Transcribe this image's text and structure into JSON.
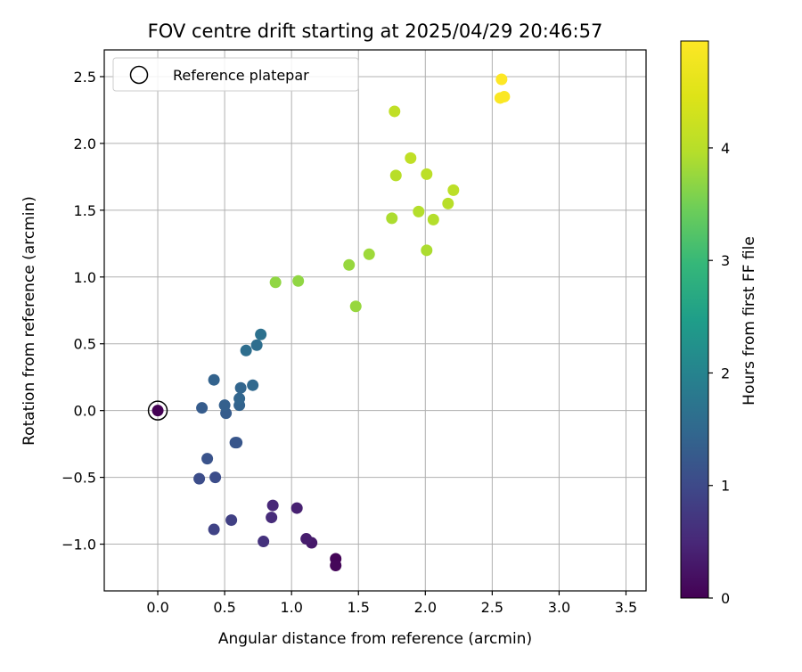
{
  "chart_data": {
    "type": "scatter",
    "title": "FOV centre drift starting at 2025/04/29 20:46:57",
    "xlabel": "Angular distance from reference (arcmin)",
    "ylabel": "Rotation from reference (arcmin)",
    "xlim": [
      -0.4,
      3.65
    ],
    "ylim": [
      -1.35,
      2.7
    ],
    "xticks": [
      0.0,
      0.5,
      1.0,
      1.5,
      2.0,
      2.5,
      3.0,
      3.5
    ],
    "xtick_labels": [
      "0.0",
      "0.5",
      "1.0",
      "1.5",
      "2.0",
      "2.5",
      "3.0",
      "3.5"
    ],
    "yticks": [
      -1.0,
      -0.5,
      0.0,
      0.5,
      1.0,
      1.5,
      2.0,
      2.5
    ],
    "ytick_labels": [
      "−1.0",
      "−0.5",
      "0.0",
      "0.5",
      "1.0",
      "1.5",
      "2.0",
      "2.5"
    ],
    "grid": true,
    "legend": {
      "placement": "upper-left",
      "entries": [
        "Reference platepar"
      ]
    },
    "colorbar": {
      "label": "Hours from first FF file",
      "colormap": "viridis",
      "range": [
        0,
        4.95
      ],
      "ticks": [
        0,
        1,
        2,
        3,
        4
      ],
      "tick_labels": [
        "0",
        "1",
        "2",
        "3",
        "4"
      ]
    },
    "reference_point": {
      "x": 0.0,
      "y": 0.0,
      "label": "Reference platepar"
    },
    "points": [
      {
        "x": 0.0,
        "y": 0.0,
        "c": 0.0
      },
      {
        "x": 1.33,
        "y": -1.11,
        "c": 0.05
      },
      {
        "x": 1.33,
        "y": -1.16,
        "c": 0.08
      },
      {
        "x": 1.15,
        "y": -0.99,
        "c": 0.3
      },
      {
        "x": 1.11,
        "y": -0.96,
        "c": 0.35
      },
      {
        "x": 1.04,
        "y": -0.73,
        "c": 0.4
      },
      {
        "x": 0.86,
        "y": -0.71,
        "c": 0.5
      },
      {
        "x": 0.85,
        "y": -0.8,
        "c": 0.55
      },
      {
        "x": 0.79,
        "y": -0.98,
        "c": 0.65
      },
      {
        "x": 0.55,
        "y": -0.82,
        "c": 0.85
      },
      {
        "x": 0.42,
        "y": -0.89,
        "c": 0.9
      },
      {
        "x": 0.31,
        "y": -0.51,
        "c": 1.05
      },
      {
        "x": 0.43,
        "y": -0.5,
        "c": 1.05
      },
      {
        "x": 0.37,
        "y": -0.36,
        "c": 1.15
      },
      {
        "x": 0.58,
        "y": -0.24,
        "c": 1.2
      },
      {
        "x": 0.59,
        "y": -0.24,
        "c": 1.2
      },
      {
        "x": 0.33,
        "y": 0.02,
        "c": 1.3
      },
      {
        "x": 0.51,
        "y": -0.02,
        "c": 1.3
      },
      {
        "x": 0.5,
        "y": 0.04,
        "c": 1.35
      },
      {
        "x": 0.61,
        "y": 0.04,
        "c": 1.4
      },
      {
        "x": 0.61,
        "y": 0.09,
        "c": 1.45
      },
      {
        "x": 0.62,
        "y": 0.17,
        "c": 1.45
      },
      {
        "x": 0.71,
        "y": 0.19,
        "c": 1.5
      },
      {
        "x": 0.42,
        "y": 0.23,
        "c": 1.4
      },
      {
        "x": 0.66,
        "y": 0.45,
        "c": 1.6
      },
      {
        "x": 0.74,
        "y": 0.49,
        "c": 1.6
      },
      {
        "x": 0.77,
        "y": 0.57,
        "c": 1.65
      },
      {
        "x": 0.88,
        "y": 0.96,
        "c": 3.7
      },
      {
        "x": 1.05,
        "y": 0.97,
        "c": 3.7
      },
      {
        "x": 1.43,
        "y": 1.09,
        "c": 3.75
      },
      {
        "x": 1.58,
        "y": 1.17,
        "c": 3.8
      },
      {
        "x": 1.48,
        "y": 0.78,
        "c": 3.75
      },
      {
        "x": 1.75,
        "y": 1.44,
        "c": 3.9
      },
      {
        "x": 1.95,
        "y": 1.49,
        "c": 3.95
      },
      {
        "x": 2.06,
        "y": 1.43,
        "c": 3.95
      },
      {
        "x": 2.01,
        "y": 1.2,
        "c": 3.9
      },
      {
        "x": 2.17,
        "y": 1.55,
        "c": 4.0
      },
      {
        "x": 2.21,
        "y": 1.65,
        "c": 4.05
      },
      {
        "x": 1.78,
        "y": 1.76,
        "c": 4.0
      },
      {
        "x": 2.01,
        "y": 1.77,
        "c": 4.05
      },
      {
        "x": 1.89,
        "y": 1.89,
        "c": 4.1
      },
      {
        "x": 1.77,
        "y": 2.24,
        "c": 4.1
      },
      {
        "x": 2.56,
        "y": 2.34,
        "c": 4.9
      },
      {
        "x": 2.59,
        "y": 2.35,
        "c": 4.9
      },
      {
        "x": 2.57,
        "y": 2.48,
        "c": 4.95
      }
    ]
  }
}
